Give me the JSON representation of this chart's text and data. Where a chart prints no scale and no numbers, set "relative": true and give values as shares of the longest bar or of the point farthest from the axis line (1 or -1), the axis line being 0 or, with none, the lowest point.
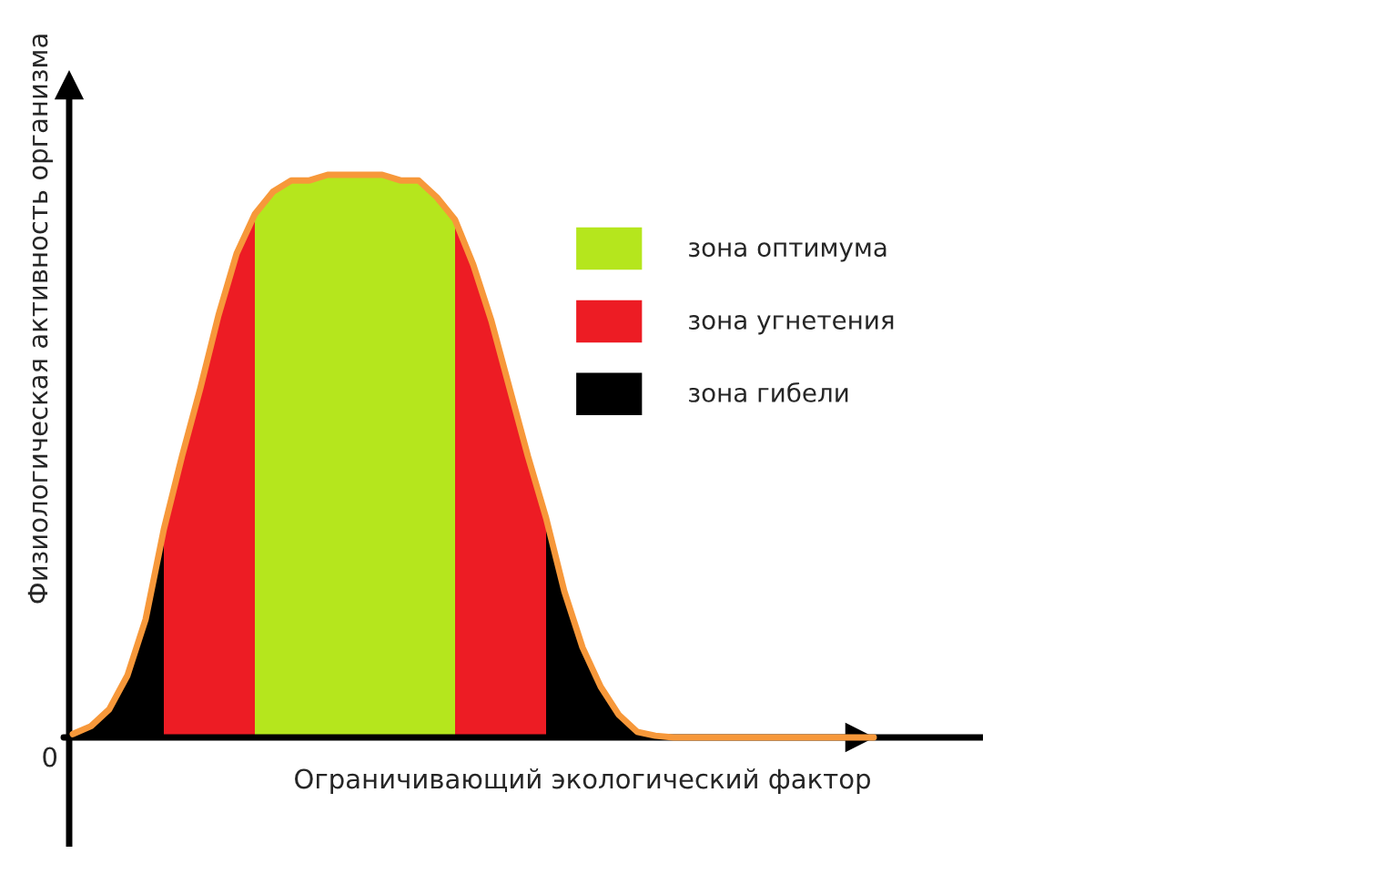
{
  "chart_data": {
    "type": "area",
    "relative": true,
    "xlabel": "Ограничивающий экологический фактор",
    "ylabel": "Физиологическая активность организма",
    "annotations": [
      "0"
    ],
    "legend": "top right",
    "categories": [
      null,
      null,
      null,
      null,
      null,
      null,
      null,
      null,
      null,
      null,
      null,
      null,
      null,
      null,
      null,
      null,
      null,
      null,
      null,
      null,
      null,
      null,
      null,
      null,
      null,
      null,
      null,
      null,
      null,
      null,
      null,
      null,
      null,
      null,
      null,
      null,
      null,
      null,
      null,
      null,
      null,
      null,
      null,
      null,
      null
    ],
    "series": [
      {
        "name": "зона оптимума",
        "color": "#b5e61d",
        "values": [
          null,
          null,
          null,
          null,
          null,
          null,
          null,
          null,
          null,
          null,
          0.93,
          0.97,
          0.99,
          0.99,
          1,
          1,
          1,
          1,
          0.99,
          0.99,
          0.96,
          0.92,
          null,
          null,
          null,
          null,
          null,
          null,
          null,
          null,
          null,
          null,
          null,
          null,
          null,
          null,
          null,
          null,
          null,
          null,
          null,
          null,
          null,
          null,
          null
        ]
      },
      {
        "name": "зона угнетения",
        "color": "#ed1c24",
        "values": [
          null,
          null,
          null,
          null,
          null,
          0.37,
          0.5,
          0.62,
          0.75,
          0.86,
          0.93,
          null,
          null,
          null,
          null,
          null,
          null,
          null,
          null,
          null,
          null,
          0.92,
          0.84,
          0.74,
          0.62,
          0.5,
          0.39,
          null,
          null,
          null,
          null,
          null,
          null,
          null,
          null,
          null,
          null,
          null,
          null,
          null,
          null,
          null,
          null,
          null,
          null
        ]
      },
      {
        "name": "зона гибели",
        "color": "#000000",
        "values": [
          0.006,
          0.02,
          0.05,
          0.11,
          0.21,
          0.37,
          null,
          null,
          null,
          null,
          null,
          null,
          null,
          null,
          null,
          null,
          null,
          null,
          null,
          null,
          null,
          null,
          null,
          null,
          null,
          null,
          0.39,
          0.26,
          0.16,
          0.09,
          0.04,
          0.01,
          0.003,
          null,
          null,
          null,
          null,
          null,
          null,
          null,
          null,
          null,
          null,
          null,
          null
        ]
      },
      {
        "type": "line",
        "color": "#f7983a",
        "values": [
          0.006,
          0.02,
          0.05,
          0.11,
          0.21,
          0.37,
          0.5,
          0.62,
          0.75,
          0.86,
          0.93,
          0.97,
          0.99,
          0.99,
          1,
          1,
          1,
          1,
          0.99,
          0.99,
          0.96,
          0.92,
          0.84,
          0.74,
          0.62,
          0.5,
          0.39,
          0.26,
          0.16,
          0.09,
          0.04,
          0.01,
          0.003,
          0,
          0,
          0,
          0,
          0,
          0,
          0,
          0,
          0,
          0,
          0,
          0
        ]
      }
    ]
  }
}
